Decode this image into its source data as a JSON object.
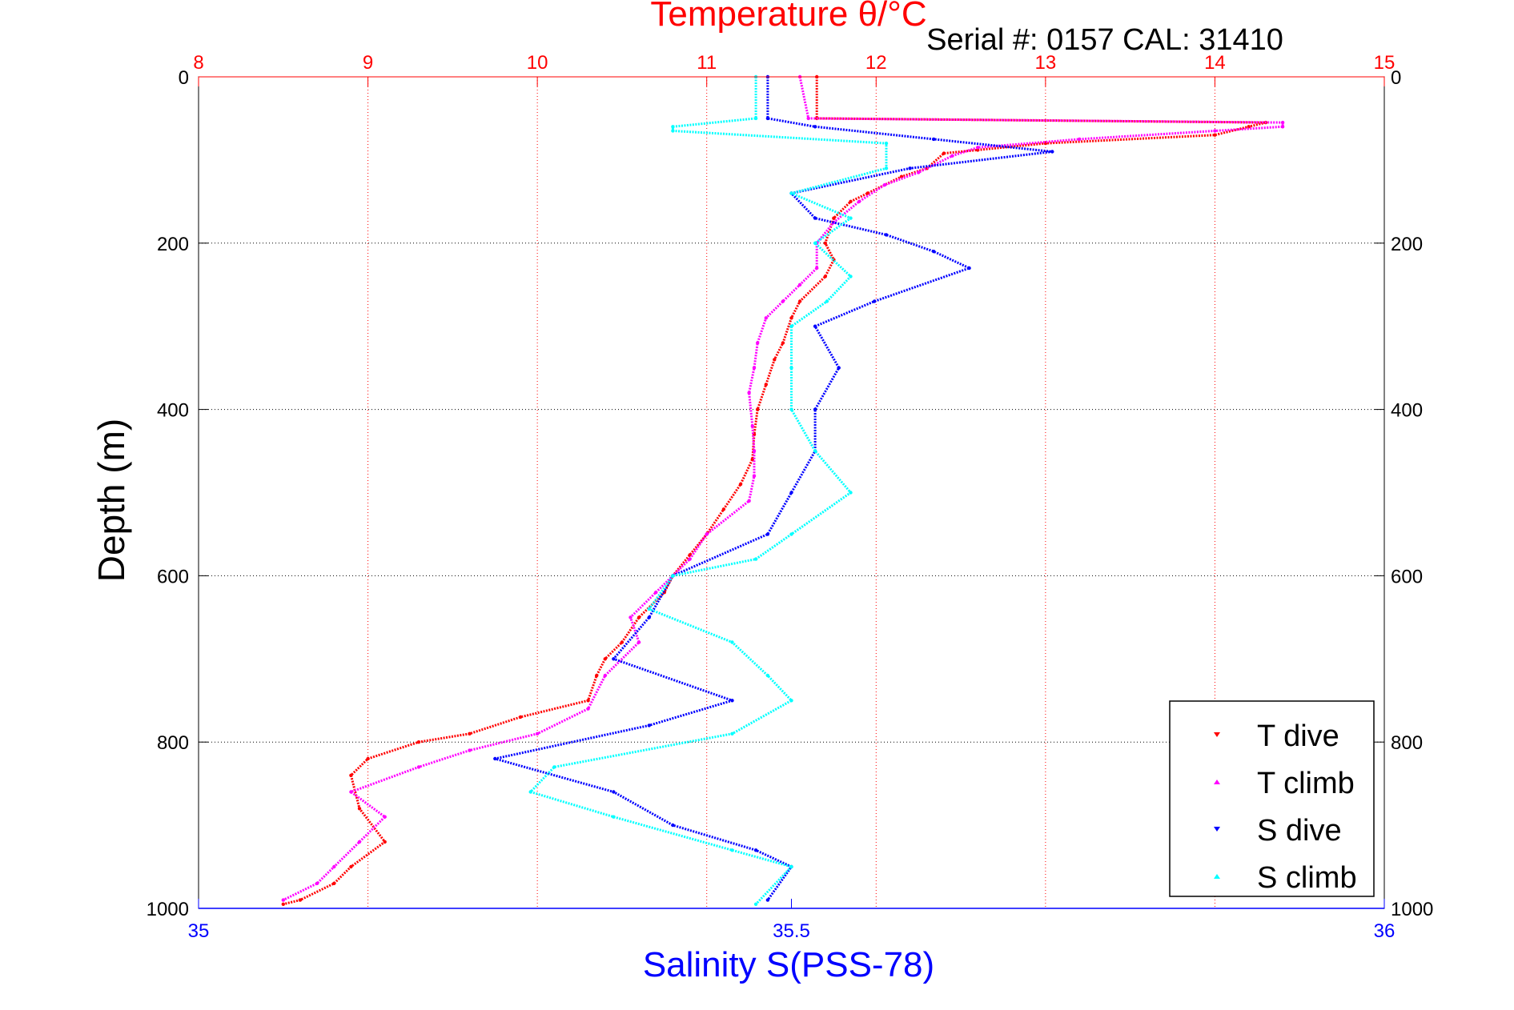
{
  "serial_label": "Serial #: 0157  CAL: 31410",
  "chart_data": {
    "type": "scatter",
    "title": "Temperature θ/°C",
    "xlabel": "Salinity S(PSS-78)",
    "ylabel": "Depth (m)",
    "x_top": {
      "label": "Temperature θ/°C",
      "range": [
        8,
        15
      ],
      "ticks": [
        "8",
        "9",
        "10",
        "11",
        "12",
        "13",
        "14",
        "15"
      ],
      "color": "#ff0000"
    },
    "x_bottom": {
      "label": "Salinity S(PSS-78)",
      "range": [
        35,
        36
      ],
      "ticks": [
        "35",
        "35.5",
        "36"
      ],
      "color": "#0000ff"
    },
    "y": {
      "label": "Depth (m)",
      "range": [
        0,
        1000
      ],
      "reversed": true,
      "ticks": [
        "0",
        "200",
        "400",
        "600",
        "800",
        "1000"
      ]
    },
    "grid": true,
    "legend_position": "bottom-right",
    "series": [
      {
        "name": "T dive",
        "axis": "temperature",
        "color": "#ff0000",
        "points": [
          [
            11.65,
            0
          ],
          [
            11.65,
            50
          ],
          [
            14.3,
            55
          ],
          [
            14.2,
            60
          ],
          [
            14.0,
            70
          ],
          [
            13.0,
            80
          ],
          [
            12.6,
            88
          ],
          [
            12.4,
            92
          ],
          [
            12.3,
            110
          ],
          [
            12.15,
            120
          ],
          [
            11.95,
            140
          ],
          [
            11.85,
            150
          ],
          [
            11.75,
            170
          ],
          [
            11.7,
            200
          ],
          [
            11.75,
            220
          ],
          [
            11.7,
            240
          ],
          [
            11.55,
            270
          ],
          [
            11.5,
            290
          ],
          [
            11.45,
            320
          ],
          [
            11.4,
            340
          ],
          [
            11.35,
            370
          ],
          [
            11.3,
            400
          ],
          [
            11.28,
            430
          ],
          [
            11.27,
            460
          ],
          [
            11.2,
            490
          ],
          [
            11.1,
            520
          ],
          [
            11.0,
            550
          ],
          [
            10.9,
            575
          ],
          [
            10.8,
            600
          ],
          [
            10.75,
            620
          ],
          [
            10.6,
            650
          ],
          [
            10.5,
            680
          ],
          [
            10.4,
            700
          ],
          [
            10.35,
            720
          ],
          [
            10.3,
            750
          ],
          [
            9.9,
            770
          ],
          [
            9.6,
            790
          ],
          [
            9.3,
            800
          ],
          [
            9.0,
            820
          ],
          [
            8.9,
            840
          ],
          [
            8.95,
            880
          ],
          [
            9.1,
            920
          ],
          [
            8.9,
            950
          ],
          [
            8.8,
            970
          ],
          [
            8.6,
            990
          ],
          [
            8.5,
            995
          ]
        ]
      },
      {
        "name": "T climb",
        "axis": "temperature",
        "color": "#ff00ff",
        "points": [
          [
            11.55,
            0
          ],
          [
            11.6,
            50
          ],
          [
            14.4,
            55
          ],
          [
            14.4,
            60
          ],
          [
            14.0,
            65
          ],
          [
            13.2,
            75
          ],
          [
            12.6,
            85
          ],
          [
            12.45,
            95
          ],
          [
            12.25,
            115
          ],
          [
            12.05,
            130
          ],
          [
            11.9,
            150
          ],
          [
            11.75,
            175
          ],
          [
            11.65,
            200
          ],
          [
            11.65,
            230
          ],
          [
            11.55,
            250
          ],
          [
            11.45,
            270
          ],
          [
            11.35,
            290
          ],
          [
            11.3,
            320
          ],
          [
            11.28,
            350
          ],
          [
            11.25,
            380
          ],
          [
            11.27,
            420
          ],
          [
            11.28,
            450
          ],
          [
            11.28,
            480
          ],
          [
            11.25,
            510
          ],
          [
            11.0,
            550
          ],
          [
            10.9,
            580
          ],
          [
            10.8,
            600
          ],
          [
            10.7,
            620
          ],
          [
            10.55,
            650
          ],
          [
            10.6,
            680
          ],
          [
            10.4,
            720
          ],
          [
            10.3,
            760
          ],
          [
            10.0,
            790
          ],
          [
            9.6,
            810
          ],
          [
            9.3,
            830
          ],
          [
            8.9,
            860
          ],
          [
            9.1,
            890
          ],
          [
            8.95,
            920
          ],
          [
            8.8,
            950
          ],
          [
            8.7,
            970
          ],
          [
            8.5,
            990
          ]
        ]
      },
      {
        "name": "S dive",
        "axis": "salinity",
        "color": "#0000ff",
        "points": [
          [
            35.48,
            0
          ],
          [
            35.48,
            50
          ],
          [
            35.52,
            60
          ],
          [
            35.62,
            75
          ],
          [
            35.72,
            90
          ],
          [
            35.6,
            110
          ],
          [
            35.5,
            140
          ],
          [
            35.52,
            170
          ],
          [
            35.58,
            190
          ],
          [
            35.62,
            210
          ],
          [
            35.65,
            230
          ],
          [
            35.57,
            270
          ],
          [
            35.52,
            300
          ],
          [
            35.54,
            350
          ],
          [
            35.52,
            400
          ],
          [
            35.52,
            450
          ],
          [
            35.5,
            500
          ],
          [
            35.48,
            550
          ],
          [
            35.4,
            600
          ],
          [
            35.38,
            650
          ],
          [
            35.35,
            700
          ],
          [
            35.45,
            750
          ],
          [
            35.38,
            780
          ],
          [
            35.25,
            820
          ],
          [
            35.35,
            860
          ],
          [
            35.4,
            900
          ],
          [
            35.47,
            930
          ],
          [
            35.5,
            950
          ],
          [
            35.48,
            990
          ]
        ]
      },
      {
        "name": "S climb",
        "axis": "salinity",
        "color": "#00ffff",
        "points": [
          [
            35.47,
            0
          ],
          [
            35.47,
            50
          ],
          [
            35.4,
            60
          ],
          [
            35.4,
            65
          ],
          [
            35.58,
            80
          ],
          [
            35.58,
            110
          ],
          [
            35.5,
            140
          ],
          [
            35.55,
            170
          ],
          [
            35.52,
            200
          ],
          [
            35.55,
            240
          ],
          [
            35.53,
            270
          ],
          [
            35.5,
            300
          ],
          [
            35.5,
            350
          ],
          [
            35.5,
            400
          ],
          [
            35.52,
            450
          ],
          [
            35.55,
            500
          ],
          [
            35.5,
            550
          ],
          [
            35.47,
            580
          ],
          [
            35.4,
            600
          ],
          [
            35.38,
            640
          ],
          [
            35.45,
            680
          ],
          [
            35.48,
            720
          ],
          [
            35.5,
            750
          ],
          [
            35.45,
            790
          ],
          [
            35.3,
            830
          ],
          [
            35.28,
            860
          ],
          [
            35.35,
            890
          ],
          [
            35.45,
            930
          ],
          [
            35.5,
            950
          ],
          [
            35.47,
            995
          ]
        ]
      }
    ]
  }
}
